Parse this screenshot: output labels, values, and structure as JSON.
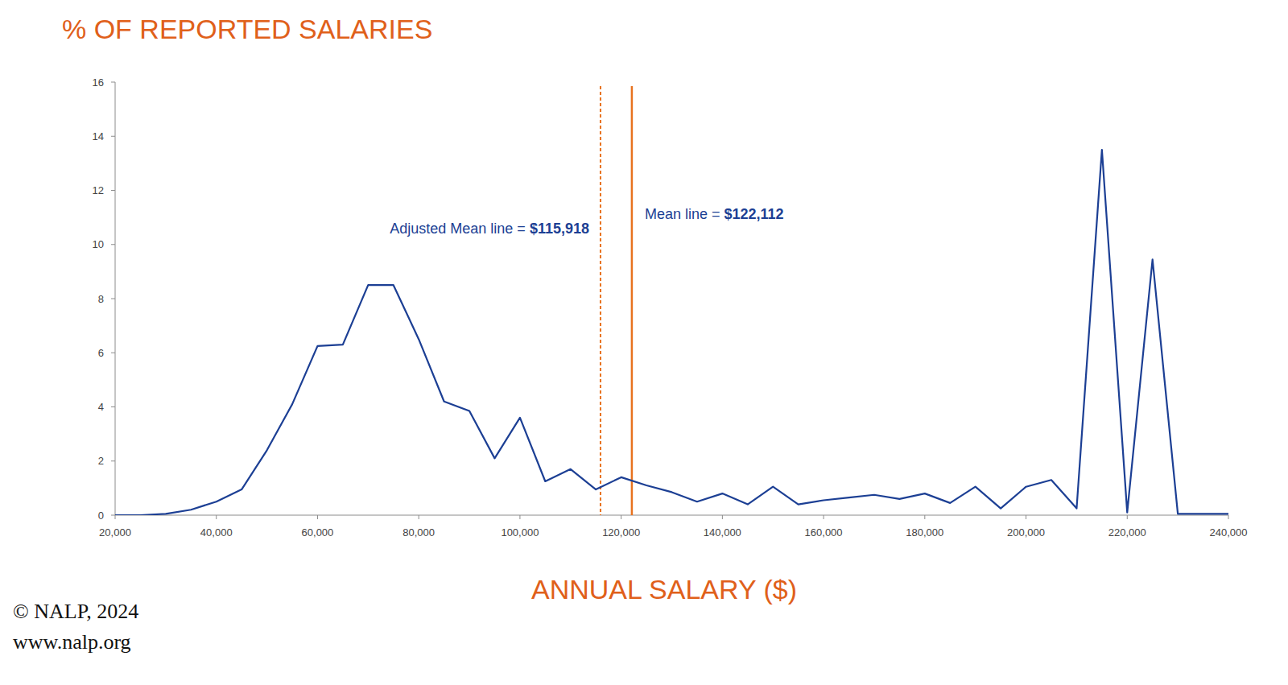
{
  "chart_data": {
    "type": "line",
    "title": "% OF REPORTED SALARIES",
    "x_label": "ANNUAL SALARY ($)",
    "color": "#1c3f94",
    "x": [
      20000,
      25000,
      30000,
      35000,
      40000,
      45000,
      50000,
      55000,
      60000,
      65000,
      70000,
      75000,
      80000,
      85000,
      90000,
      95000,
      100000,
      105000,
      110000,
      115000,
      120000,
      125000,
      130000,
      135000,
      140000,
      145000,
      150000,
      155000,
      160000,
      165000,
      170000,
      175000,
      180000,
      185000,
      190000,
      195000,
      200000,
      205000,
      210000,
      215000,
      220000,
      225000,
      230000,
      235000,
      240000
    ],
    "values": [
      0,
      0,
      0.05,
      0.2,
      0.5,
      0.95,
      2.4,
      4.1,
      6.25,
      6.3,
      8.5,
      8.5,
      6.5,
      4.2,
      3.85,
      2.1,
      3.6,
      1.25,
      1.7,
      0.95,
      1.4,
      1.1,
      0.85,
      0.5,
      0.8,
      0.4,
      1.05,
      0.4,
      0.55,
      0.65,
      0.75,
      0.6,
      0.8,
      0.45,
      1.05,
      0.25,
      1.05,
      1.3,
      0.25,
      13.5,
      0.1,
      9.45,
      0.05,
      0.05,
      0.05
    ],
    "xlim": [
      20000,
      240000
    ],
    "xticks": [
      {
        "value": 20000,
        "label": "20,000"
      },
      {
        "value": 40000,
        "label": "40,000"
      },
      {
        "value": 60000,
        "label": "60,000"
      },
      {
        "value": 80000,
        "label": "80,000"
      },
      {
        "value": 100000,
        "label": "100,000"
      },
      {
        "value": 120000,
        "label": "120,000"
      },
      {
        "value": 140000,
        "label": "140,000"
      },
      {
        "value": 160000,
        "label": "160,000"
      },
      {
        "value": 180000,
        "label": "180,000"
      },
      {
        "value": 200000,
        "label": "200,000"
      },
      {
        "value": 220000,
        "label": "220,000"
      },
      {
        "value": 240000,
        "label": "240,000"
      }
    ],
    "ylim": [
      0,
      16
    ],
    "yticks": [
      0,
      2,
      4,
      6,
      8,
      10,
      12,
      14,
      16
    ],
    "grid": false,
    "reference_lines": [
      {
        "label": "Adjusted Mean line = ",
        "value": 115918,
        "value_label": "$115,918",
        "line_style": "dotted",
        "color": "#e8731f"
      },
      {
        "label": "Mean line = ",
        "value": 122112,
        "value_label": "$122,112",
        "line_style": "solid",
        "color": "#e8731f"
      }
    ],
    "footer": [
      "© NALP, 2024",
      "www.nalp.org"
    ]
  }
}
